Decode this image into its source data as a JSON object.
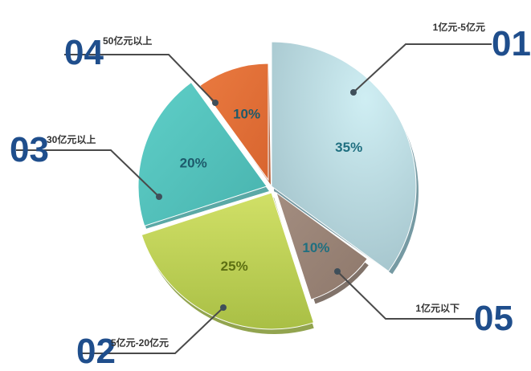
{
  "chart_data": {
    "type": "pie",
    "title": "",
    "slices": [
      {
        "id": "01",
        "label": "1亿元-5亿元",
        "value": 35,
        "value_label": "35%",
        "color": "#a9cad3",
        "text_color": "#1f6f80"
      },
      {
        "id": "05",
        "label": "1亿元以下",
        "value": 10,
        "value_label": "10%",
        "color": "#9c8679",
        "text_color": "#1f6f80"
      },
      {
        "id": "02",
        "label": "5亿元-20亿元",
        "value": 25,
        "value_label": "25%",
        "color": "#c0d45b",
        "text_color": "#5c6f12"
      },
      {
        "id": "03",
        "label": "30亿元以上",
        "value": 20,
        "value_label": "20%",
        "color": "#52c0bb",
        "text_color": "#1d5a6b"
      },
      {
        "id": "04",
        "label": "50亿元以上",
        "value": 10,
        "value_label": "10%",
        "color": "#e2703a",
        "text_color": "#1d5a6b"
      }
    ],
    "legend": "callouts with index numbers",
    "number_color": "#1f4e8c"
  }
}
